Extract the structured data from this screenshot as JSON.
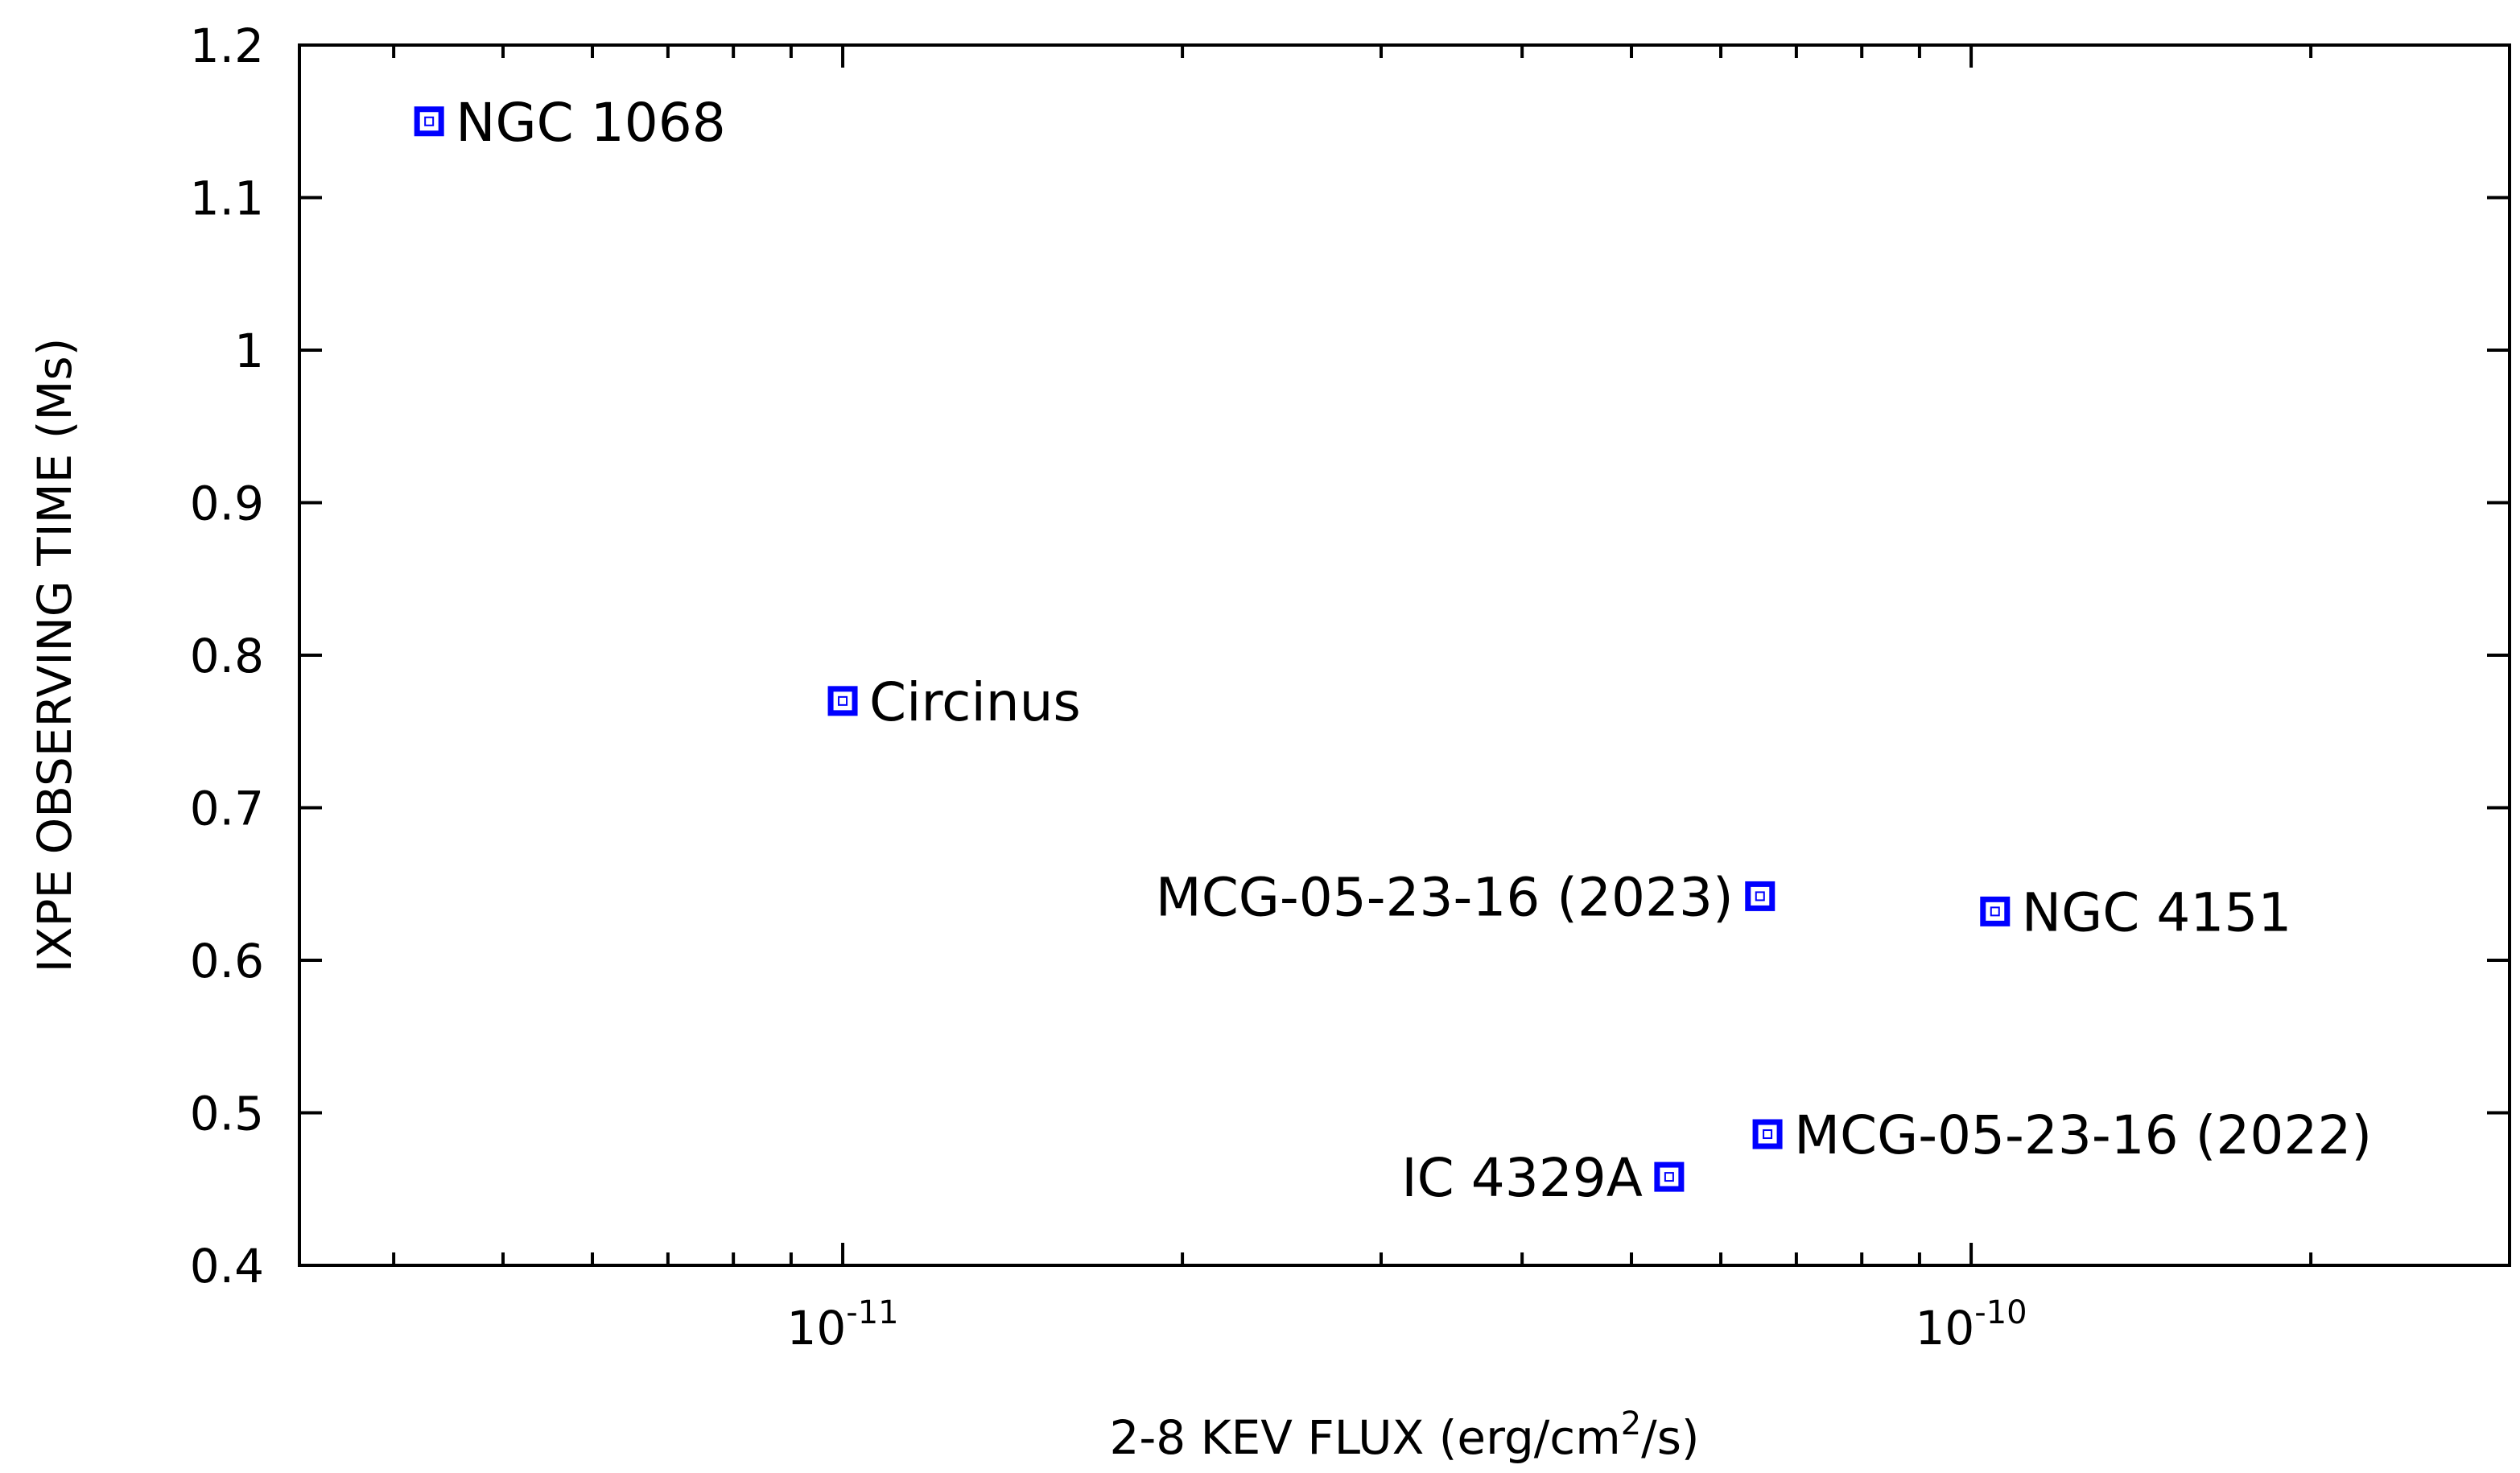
{
  "chart_data": {
    "type": "scatter",
    "xlabel": "2-8 KEV FLUX (erg/cm",
    "xlabel_sup": "2",
    "xlabel_tail": "/s)",
    "ylabel": "IXPE OBSERVING TIME (Ms)",
    "xscale": "log",
    "xlim": [
      3.3e-12,
      3e-10
    ],
    "ylim": [
      0.4,
      1.2
    ],
    "y_ticks": [
      {
        "value": 0.4,
        "label": "0.4"
      },
      {
        "value": 0.5,
        "label": "0.5"
      },
      {
        "value": 0.6,
        "label": "0.6"
      },
      {
        "value": 0.7,
        "label": "0.7"
      },
      {
        "value": 0.8,
        "label": "0.8"
      },
      {
        "value": 0.9,
        "label": "0.9"
      },
      {
        "value": 1.0,
        "label": "1"
      },
      {
        "value": 1.1,
        "label": "1.1"
      },
      {
        "value": 1.2,
        "label": "1.2"
      }
    ],
    "x_major_ticks": [
      {
        "value": 1e-11,
        "base": "10",
        "exp": "-11"
      },
      {
        "value": 1e-10,
        "base": "10",
        "exp": "-10"
      }
    ],
    "grid": false,
    "marker_color": "#0000ff",
    "points": [
      {
        "name": "NGC 1068",
        "x": 4.3e-12,
        "y": 1.15,
        "label_side": "right"
      },
      {
        "name": "Circinus",
        "x": 1e-11,
        "y": 0.77,
        "label_side": "right"
      },
      {
        "name": "MCG-05-23-16 (2023)",
        "x": 6.5e-11,
        "y": 0.642,
        "label_side": "left"
      },
      {
        "name": "NGC 4151",
        "x": 1.05e-10,
        "y": 0.632,
        "label_side": "right"
      },
      {
        "name": "MCG-05-23-16 (2022)",
        "x": 6.6e-11,
        "y": 0.486,
        "label_side": "right"
      },
      {
        "name": "IC 4329A",
        "x": 5.4e-11,
        "y": 0.458,
        "label_side": "left"
      }
    ]
  }
}
